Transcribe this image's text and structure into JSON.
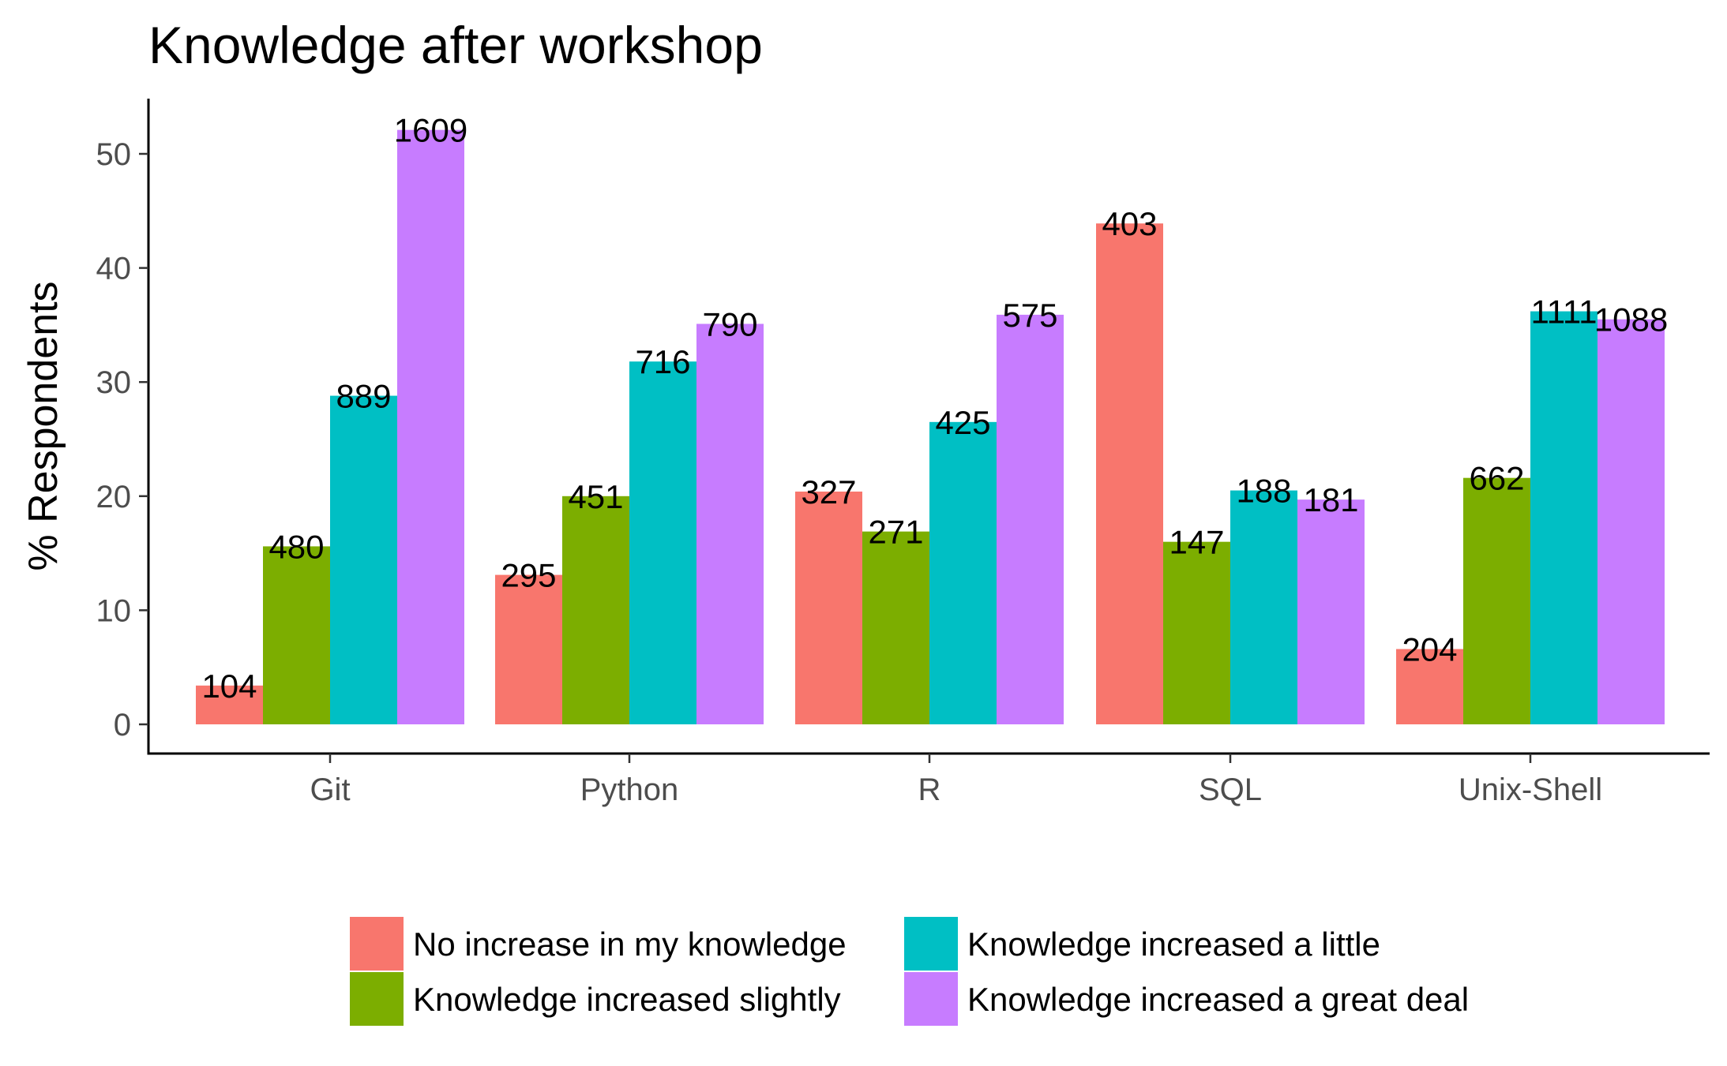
{
  "chart_data": {
    "type": "bar",
    "title": "Knowledge after workshop",
    "xlabel": "",
    "ylabel": "% Respondents",
    "categories": [
      "Git",
      "Python",
      "R",
      "SQL",
      "Unix-Shell"
    ],
    "ylim": [
      0,
      55
    ],
    "yticks": [
      0,
      10,
      20,
      30,
      40,
      50
    ],
    "grid": false,
    "legend_position": "bottom",
    "series": [
      {
        "name": "No increase in my knowledge",
        "color": "#F8766D",
        "values": [
          3.4,
          13.1,
          20.4,
          43.9,
          6.6
        ],
        "labels": [
          "104",
          "295",
          "327",
          "403",
          "204"
        ]
      },
      {
        "name": "Knowledge increased slightly",
        "color": "#7CAE00",
        "values": [
          15.6,
          20.0,
          16.9,
          16.0,
          21.6
        ],
        "labels": [
          "480",
          "451",
          "271",
          "147",
          "662"
        ]
      },
      {
        "name": "Knowledge increased a little",
        "color": "#00BFC4",
        "values": [
          28.8,
          31.8,
          26.5,
          20.5,
          36.2
        ],
        "labels": [
          "889",
          "716",
          "425",
          "188",
          "1111"
        ]
      },
      {
        "name": "Knowledge increased a great deal",
        "color": "#C77CFF",
        "values": [
          52.1,
          35.1,
          35.9,
          19.7,
          35.5
        ],
        "labels": [
          "1609",
          "790",
          "575",
          "181",
          "1088"
        ]
      }
    ]
  }
}
